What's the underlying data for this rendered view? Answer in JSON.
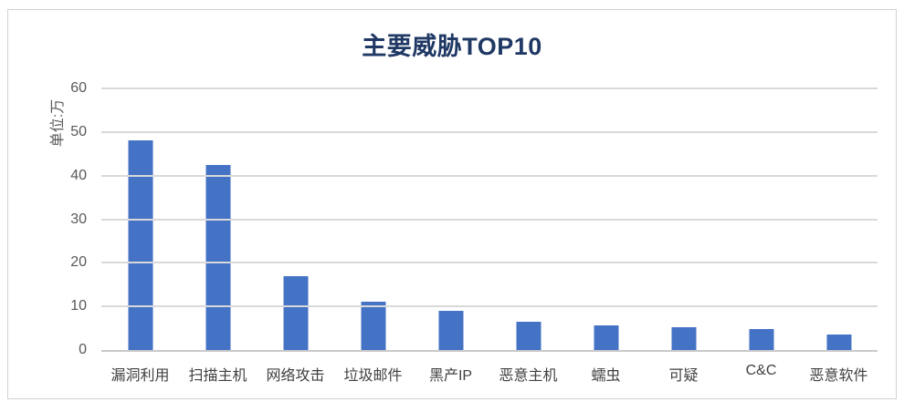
{
  "chart_data": {
    "type": "bar",
    "title": "主要威胁TOP10",
    "ylabel": "单位:万",
    "xlabel": "",
    "categories": [
      "漏洞利用",
      "扫描主机",
      "网络攻击",
      "垃圾邮件",
      "黑产IP",
      "恶意主机",
      "蠕虫",
      "可疑",
      "C&C",
      "恶意软件"
    ],
    "values": [
      48,
      42.5,
      17,
      11,
      9,
      6.5,
      5.7,
      5.2,
      4.8,
      3.6
    ],
    "ylim": [
      0,
      60
    ],
    "yticks": [
      0,
      10,
      20,
      30,
      40,
      50,
      60
    ],
    "grid": true,
    "legend": false,
    "colors": {
      "bar": "#4472C4",
      "title": "#1F3864",
      "tick_text": "#595959",
      "category_text": "#404040",
      "gridline": "#D9D9D9",
      "baseline": "#C9C9C9",
      "card_border": "#D2D2D2"
    }
  }
}
